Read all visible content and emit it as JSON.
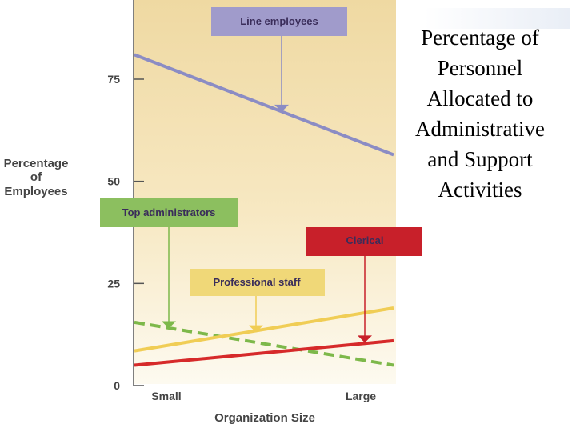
{
  "side_title": {
    "lines": [
      "Percentage of",
      "Personnel",
      "Allocated to",
      "Administrative",
      "and Support",
      "Activities"
    ]
  },
  "chart_data": {
    "type": "line",
    "title": "Percentage of Personnel Allocated to Administrative and Support Activities",
    "ylabel": [
      "Percentage",
      "of",
      "Employees"
    ],
    "xlabel": "Organization Size",
    "x": [
      "Small",
      "Large"
    ],
    "ylim": [
      0,
      95
    ],
    "yticks": [
      0,
      25,
      50,
      75
    ],
    "grid": false,
    "series": [
      {
        "name": "Line employees",
        "values": [
          81,
          56.5
        ],
        "color": "#8b8cc4",
        "dash": false
      },
      {
        "name": "Top administrators",
        "values": [
          15.5,
          5
        ],
        "color": "#7db84a",
        "dash": true
      },
      {
        "name": "Professional staff",
        "values": [
          8.5,
          19
        ],
        "color": "#f0cd55",
        "dash": false
      },
      {
        "name": "Clerical",
        "values": [
          5,
          11
        ],
        "color": "#d62a2a",
        "dash": false
      }
    ],
    "callouts": [
      {
        "label": "Line employees",
        "fill": "#a09bcb",
        "arrow_to": [
          0.5,
          67
        ],
        "arrow_color": "#8b8cc4"
      },
      {
        "label": "Top administrators",
        "fill": "#8cbf5f",
        "arrow_to": [
          0.1,
          14
        ],
        "arrow_color": "#7db84a"
      },
      {
        "label": "Professional staff",
        "fill": "#f0d878",
        "arrow_to": [
          0.37,
          13
        ],
        "arrow_color": "#f0cd55"
      },
      {
        "label": "Clerical",
        "fill": "#c8202a",
        "arrow_to": [
          0.85,
          10.5
        ],
        "arrow_color": "#c8202a"
      }
    ]
  }
}
